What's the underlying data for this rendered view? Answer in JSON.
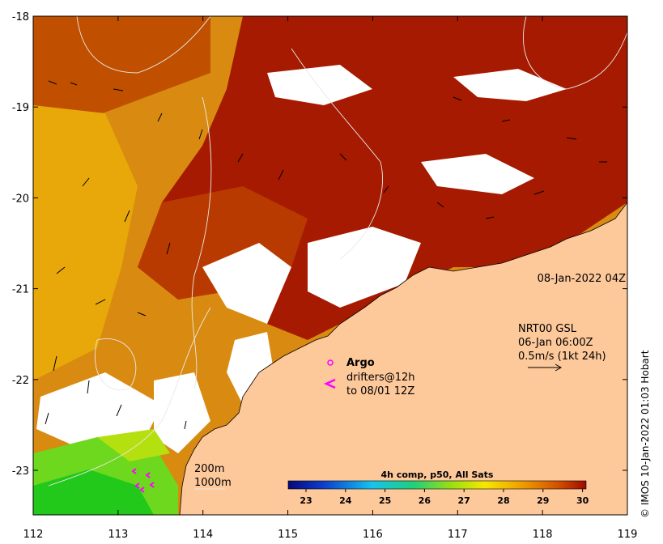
{
  "map": {
    "x_ticks": [
      "112",
      "113",
      "114",
      "115",
      "116",
      "117",
      "118",
      "119"
    ],
    "y_ticks": [
      "-18",
      "-19",
      "-20",
      "-21",
      "-22",
      "-23"
    ],
    "timestamp": "08-Jan-2022 04Z",
    "currents": {
      "line1": "NRT00 GSL",
      "line2": "06-Jan 06:00Z",
      "line3": "0.5m/s (1kt 24h)"
    },
    "legend": {
      "argo": "Argo",
      "drifters1": "drifters@12h",
      "drifters2": "to 08/01 12Z"
    },
    "isobaths": {
      "a": "200m",
      "b": "1000m"
    },
    "colorbar": {
      "title": "4h comp, p50, All Sats",
      "ticks": [
        "23",
        "24",
        "25",
        "26",
        "27",
        "28",
        "29",
        "30"
      ]
    },
    "credit": "© IMOS 10-Jan-2022 01:03 Hobart",
    "colors": {
      "land": "#fdc89a",
      "argo": "#ff00ff",
      "arrow": "#000000"
    }
  }
}
